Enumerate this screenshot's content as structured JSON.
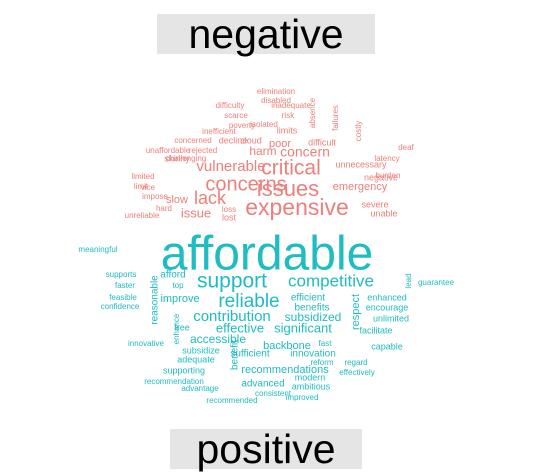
{
  "labels": {
    "negative": "negative",
    "positive": "positive"
  },
  "colors": {
    "negative": "#ee7f7a",
    "positive": "#1fbcc1"
  },
  "negative_words": [
    "elimination",
    "disabled",
    "difficulty",
    "inadequate",
    "scarce",
    "risk",
    "poverty",
    "isolated",
    "absence",
    "failures",
    "inefficient",
    "limits",
    "costly",
    "concerned",
    "decline",
    "cloud",
    "poor",
    "difficult",
    "deaf",
    "unaffordable",
    "rejected",
    "harm",
    "concern",
    "latency",
    "challenging",
    "skinny",
    "unnecessary",
    "vulnerable",
    "critical",
    "limited",
    "negative",
    "limit",
    "burden",
    "vice",
    "concerns",
    "issues",
    "emergency",
    "impose",
    "lack",
    "expensive",
    "slow",
    "hard",
    "loss",
    "severe",
    "unreliable",
    "issue",
    "lost",
    "unable"
  ],
  "positive_words": [
    "affordable",
    "meaningful",
    "supports",
    "afford",
    "competitive",
    "support",
    "lead",
    "faster",
    "top",
    "guarantee",
    "feasible",
    "improve",
    "reliable",
    "efficient",
    "confidence",
    "benefits",
    "enhanced",
    "reasonable",
    "contribution",
    "subsidized",
    "encourage",
    "respect",
    "effective",
    "significant",
    "unlimited",
    "enhance",
    "facilitate",
    "free",
    "accessible",
    "fast",
    "innovative",
    "backbone",
    "capable",
    "subsidize",
    "sufficient",
    "innovation",
    "adequate",
    "benefit",
    "reform",
    "regard",
    "recommendations",
    "supporting",
    "modern",
    "effectively",
    "recommendation",
    "advanced",
    "ambitious",
    "advantage",
    "consistent",
    "recommended",
    "improved"
  ]
}
